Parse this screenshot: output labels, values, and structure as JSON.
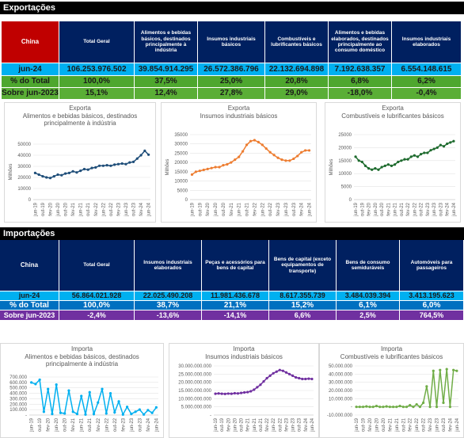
{
  "exports": {
    "title": "Exportações",
    "table": {
      "header": [
        "China",
        "Total Geral",
        "Alimentos e bebidas básicos, destinados principalmente à indústria",
        "Insumos industriais básicos",
        "Combustíveis e lubrificantes básicos",
        "Alimentos e bebidas elaborados, destinados principalmente ao consumo doméstico",
        "Insumos industriais elaborados"
      ],
      "rows": [
        [
          "jun-24",
          "106.253.976.502",
          "39.854.914.295",
          "26.572.386.796",
          "22.132.694.898",
          "7.192.638.357",
          "6.554.148.615"
        ],
        [
          "% do Total",
          "100,0%",
          "37,5%",
          "25,0%",
          "20,8%",
          "6,8%",
          "6,2%"
        ],
        [
          "Sobre jun-2023",
          "15,1%",
          "12,4%",
          "27,8%",
          "29,0%",
          "-18,0%",
          "-0,4%"
        ]
      ]
    }
  },
  "imports": {
    "title": "Importações",
    "table": {
      "header": [
        "China",
        "Total Geral",
        "Insumos industriais elaborados",
        "Peças e acessórios para bens de capital",
        "Bens de capital (exceto equipamentos de transporte)",
        "Bens de consumo semiduráveis",
        "Automóveis para passageiros"
      ],
      "rows": [
        [
          "jun-24",
          "56.864.021.928",
          "22.025.490.208",
          "11.981.436.678",
          "8.617.355.739",
          "3.484.039.394",
          "3.413.195.623"
        ],
        [
          "% do Total",
          "100,0%",
          "38,7%",
          "21,1%",
          "15,2%",
          "6,1%",
          "6,0%"
        ],
        [
          "Sobre jun-2023",
          "-2,4%",
          "-13,6%",
          "-14,1%",
          "6,6%",
          "2,5%",
          "764,5%"
        ]
      ]
    }
  },
  "chart_data": [
    {
      "type": "line",
      "title": "Exporta",
      "subtitle": "Alimentos e bebidas básicos, destinados principalmente à indústria",
      "y_label": "Milhões",
      "color": "#1f4e79",
      "grid": true,
      "categories": [
        "jun-19",
        null,
        "out-19",
        null,
        "fev-20",
        null,
        "jun-20",
        null,
        "out-20",
        null,
        "fev-21",
        null,
        "jun-21",
        null,
        "out-21",
        null,
        "fev-22",
        null,
        "jun-22",
        null,
        "out-22",
        null,
        "fev-23",
        null,
        "jun-23",
        null,
        "out-23",
        null,
        "fev-24",
        null,
        "jun-24"
      ],
      "values": [
        24000,
        22500,
        21000,
        20000,
        19500,
        21000,
        22500,
        22000,
        23500,
        24000,
        25500,
        24500,
        26000,
        27500,
        27000,
        28500,
        29000,
        30500,
        30500,
        31000,
        30500,
        31500,
        32000,
        32500,
        32000,
        33500,
        34000,
        37000,
        40000,
        44000,
        40500
      ],
      "ylim": [
        0,
        50000
      ],
      "yticks": [
        0,
        10000,
        20000,
        30000,
        40000,
        50000
      ]
    },
    {
      "type": "line",
      "title": "Exporta",
      "subtitle": "Insumos industriais básicos",
      "y_label": "Milhões",
      "color": "#ed7d31",
      "grid": true,
      "categories": [
        "jun-19",
        null,
        "out-19",
        null,
        "fev-20",
        null,
        "jun-20",
        null,
        "out-20",
        null,
        "fev-21",
        null,
        "jun-21",
        null,
        "out-21",
        null,
        "fev-22",
        null,
        "jun-22",
        null,
        "out-22",
        null,
        "fev-23",
        null,
        "jun-23",
        null,
        "out-23",
        null,
        "fev-24",
        null,
        "jun-24"
      ],
      "values": [
        13500,
        15000,
        15500,
        16000,
        16500,
        17000,
        17500,
        17500,
        18500,
        19000,
        20000,
        21500,
        23000,
        26000,
        29500,
        31500,
        32000,
        31000,
        29500,
        27500,
        25500,
        24000,
        22500,
        21500,
        21000,
        21000,
        22000,
        23500,
        25500,
        26500,
        26500
      ],
      "ylim": [
        0,
        35000
      ],
      "yticks": [
        0,
        5000,
        10000,
        15000,
        20000,
        25000,
        30000,
        35000
      ]
    },
    {
      "type": "line",
      "title": "Exporta",
      "subtitle": "Combustíveis e lubrificantes básicos",
      "y_label": "Milhões",
      "color": "#1e6b2e",
      "grid": true,
      "categories": [
        "jun-19",
        null,
        "out-19",
        null,
        "fev-20",
        null,
        "jun-20",
        null,
        "out-20",
        null,
        "fev-21",
        null,
        "jun-21",
        null,
        "out-21",
        null,
        "fev-22",
        null,
        "jun-22",
        null,
        "out-22",
        null,
        "fev-23",
        null,
        "jun-23",
        null,
        "out-23",
        null,
        "fev-24",
        null,
        "jun-24"
      ],
      "values": [
        16500,
        15000,
        14500,
        13000,
        12000,
        11500,
        12000,
        11500,
        12500,
        13000,
        13500,
        13000,
        13500,
        14500,
        15000,
        15500,
        15500,
        16500,
        17000,
        16500,
        17500,
        18000,
        18000,
        19000,
        19500,
        20000,
        21000,
        20500,
        21500,
        22000,
        22500
      ],
      "ylim": [
        0,
        25000
      ],
      "yticks": [
        0,
        5000,
        10000,
        15000,
        20000,
        25000
      ]
    },
    {
      "type": "line",
      "title": "Importa",
      "subtitle": "Alimentos e bebidas básicos, destinados principalmente à indústria",
      "color": "#00b0f0",
      "grid": true,
      "categories": [
        "jun-19",
        null,
        "out-19",
        null,
        "fev-20",
        null,
        "jun-20",
        null,
        "out-20",
        null,
        "fev-21",
        null,
        "jun-21",
        null,
        "out-21",
        null,
        "fev-22",
        null,
        "jun-22",
        null,
        "out-22",
        null,
        "fev-23",
        null,
        "jun-23",
        null,
        "out-23",
        null,
        "fev-24",
        null,
        "jun-24"
      ],
      "values": [
        600000,
        570000,
        650000,
        60000,
        480000,
        20000,
        560000,
        40000,
        30000,
        450000,
        60000,
        20000,
        350000,
        10000,
        420000,
        20000,
        230000,
        480000,
        30000,
        400000,
        50000,
        250000,
        10000,
        150000,
        20000,
        60000,
        100000,
        10000,
        90000,
        40000,
        140000
      ],
      "ylim": [
        0,
        700000
      ],
      "yticks": [
        {
          "value": 0,
          "label": "-"
        },
        {
          "value": 100000,
          "label": "100.000"
        },
        {
          "value": 200000,
          "label": "200.000"
        },
        {
          "value": 300000,
          "label": "300.000"
        },
        {
          "value": 400000,
          "label": "400.000"
        },
        {
          "value": 500000,
          "label": "500.000"
        },
        {
          "value": 600000,
          "label": "600.000"
        },
        {
          "value": 700000,
          "label": "700.000"
        }
      ]
    },
    {
      "type": "line",
      "title": "Importa",
      "subtitle": "Insumos industriais básicos",
      "color": "#7030a0",
      "grid": true,
      "categories": [
        "jun-19",
        null,
        "out-19",
        null,
        "fev-20",
        null,
        "jun-20",
        null,
        "out-20",
        null,
        "fev-21",
        null,
        "jun-21",
        null,
        "out-21",
        null,
        "fev-22",
        null,
        "jun-22",
        null,
        "out-22",
        null,
        "fev-23",
        null,
        "jun-23",
        null,
        "out-23",
        null,
        "fev-24",
        null,
        "jun-24"
      ],
      "values": [
        13000000000,
        13200000000,
        13000000000,
        12900000000,
        13100000000,
        13000000000,
        13300000000,
        13200000000,
        13500000000,
        13800000000,
        14000000000,
        14500000000,
        15500000000,
        17000000000,
        18500000000,
        20500000000,
        22500000000,
        24000000000,
        25500000000,
        26500000000,
        27500000000,
        27000000000,
        26000000000,
        25000000000,
        24000000000,
        23000000000,
        22500000000,
        22000000000,
        22000000000,
        22200000000,
        22000000000
      ],
      "ylim": [
        0,
        30000000000
      ],
      "yticks": [
        {
          "value": 0,
          "label": "-"
        },
        {
          "value": 5000000000,
          "label": "5.000.000.000"
        },
        {
          "value": 10000000000,
          "label": "10.000.000.000"
        },
        {
          "value": 15000000000,
          "label": "15.000.000.000"
        },
        {
          "value": 20000000000,
          "label": "20.000.000.000"
        },
        {
          "value": 25000000000,
          "label": "25.000.000.000"
        },
        {
          "value": 30000000000,
          "label": "30.000.000.000"
        }
      ]
    },
    {
      "type": "line",
      "title": "Importa",
      "subtitle": "Combustíveis e lubrificantes básicos",
      "color": "#70ad47",
      "grid": true,
      "categories": [
        "jun-19",
        null,
        "out-19",
        null,
        "fev-20",
        null,
        "jun-20",
        null,
        "out-20",
        null,
        "fev-21",
        null,
        "jun-21",
        null,
        "out-21",
        null,
        "fev-22",
        null,
        "jun-22",
        null,
        "out-22",
        null,
        "fev-23",
        null,
        "jun-23",
        null,
        "out-23",
        null,
        "fev-24",
        null,
        "jun-24"
      ],
      "values": [
        0,
        0,
        0,
        500000,
        0,
        0,
        1000000,
        0,
        0,
        500000,
        0,
        0,
        0,
        1000000,
        0,
        0,
        2000000,
        0,
        3000000,
        0,
        5000000,
        25000000,
        0,
        44000000,
        0,
        45000000,
        5000000,
        46000000,
        0,
        45000000,
        44000000
      ],
      "ylim": [
        -10000000,
        50000000
      ],
      "yticks": [
        {
          "value": -10000000,
          "label": "-10.000.000"
        },
        {
          "value": 0,
          "label": "-"
        },
        {
          "value": 10000000,
          "label": "10.000.000"
        },
        {
          "value": 20000000,
          "label": "20.000.000"
        },
        {
          "value": 30000000,
          "label": "30.000.000"
        },
        {
          "value": 40000000,
          "label": "40.000.000"
        },
        {
          "value": 50000000,
          "label": "50.000.000"
        }
      ]
    }
  ]
}
